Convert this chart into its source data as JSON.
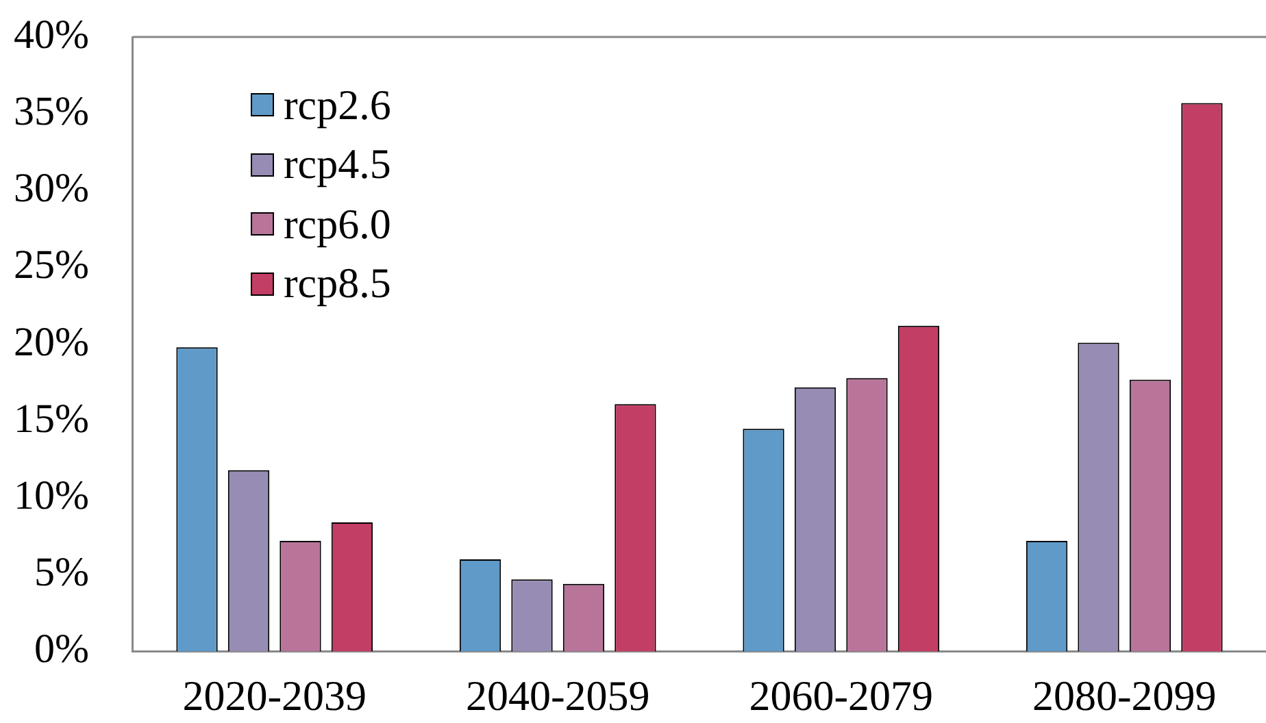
{
  "chart_data": {
    "type": "bar",
    "categories": [
      "2020-2039",
      "2040-2059",
      "2060-2079",
      "2080-2099"
    ],
    "series": [
      {
        "name": "rcp2.6",
        "color": "#5f9ac8",
        "values": [
          19.8,
          6.0,
          14.5,
          7.2
        ]
      },
      {
        "name": "rcp4.5",
        "color": "#978cb4",
        "values": [
          11.8,
          4.7,
          17.2,
          20.1
        ]
      },
      {
        "name": "rcp6.0",
        "color": "#b87599",
        "values": [
          7.2,
          4.4,
          17.8,
          17.7
        ]
      },
      {
        "name": "rcp8.5",
        "color": "#c23e64",
        "values": [
          8.4,
          16.1,
          21.2,
          35.7
        ]
      }
    ],
    "ylim": [
      0,
      40
    ],
    "yticks": [
      {
        "value": 0,
        "label": "0%"
      },
      {
        "value": 5,
        "label": "5%"
      },
      {
        "value": 10,
        "label": "10%"
      },
      {
        "value": 15,
        "label": "15%"
      },
      {
        "value": 20,
        "label": "20%"
      },
      {
        "value": 25,
        "label": "25%"
      },
      {
        "value": 30,
        "label": "30%"
      },
      {
        "value": 35,
        "label": "35%"
      },
      {
        "value": 40,
        "label": "40%"
      }
    ],
    "legend": "top left"
  }
}
